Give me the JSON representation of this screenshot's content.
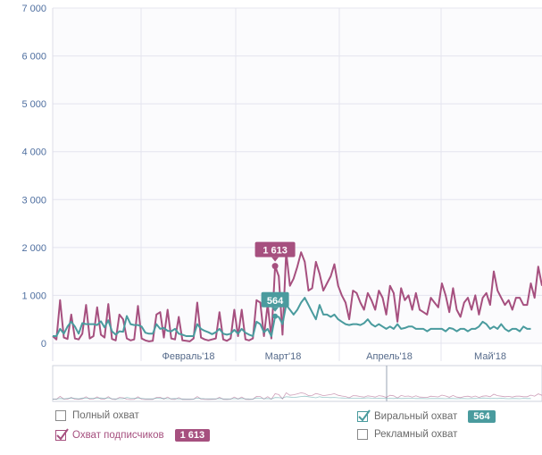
{
  "chart_data": {
    "type": "line",
    "y_ticks": [
      "7 000",
      "6 000",
      "5 000",
      "4 000",
      "3 000",
      "2 000",
      "1 000",
      "0"
    ],
    "ylim": [
      0,
      7000
    ],
    "x_tick_labels": [
      "Февраль'18",
      "Март'18",
      "Апрель'18",
      "Май'18"
    ],
    "grid": true,
    "series": [
      {
        "name": "Охват подписчиков",
        "color": "#a6507f",
        "values": [
          150,
          80,
          900,
          120,
          90,
          600,
          100,
          80,
          200,
          800,
          100,
          150,
          750,
          180,
          120,
          820,
          90,
          60,
          600,
          500,
          100,
          60,
          80,
          780,
          100,
          60,
          40,
          50,
          600,
          650,
          120,
          700,
          100,
          80,
          550,
          60,
          50,
          40,
          100,
          850,
          120,
          80,
          60,
          80,
          100,
          650,
          80,
          50,
          100,
          700,
          150,
          700,
          80,
          60,
          100,
          900,
          850,
          150,
          820,
          100,
          1613,
          1400,
          180,
          1900,
          1200,
          1350,
          1600,
          1900,
          1700,
          1100,
          1150,
          1700,
          1450,
          1100,
          1250,
          1400,
          1650,
          1200,
          1000,
          850,
          500,
          1100,
          1050,
          850,
          700,
          1050,
          900,
          700,
          1100,
          950,
          600,
          1200,
          1050,
          450,
          1150,
          900,
          1000,
          700,
          1050,
          700,
          650,
          600,
          950,
          850,
          750,
          1250,
          1000,
          650,
          1150,
          700,
          550,
          850,
          950,
          700,
          1000,
          600,
          950,
          1050,
          800,
          1500,
          1100,
          950,
          800,
          900,
          700,
          950,
          950,
          800,
          800,
          1250,
          950,
          1600,
          1200
        ]
      },
      {
        "name": "Виральный охват",
        "color": "#4a9b9e",
        "values": [
          150,
          150,
          300,
          200,
          350,
          450,
          350,
          200,
          420,
          400,
          400,
          400,
          380,
          460,
          330,
          480,
          250,
          180,
          250,
          240,
          570,
          400,
          380,
          380,
          350,
          220,
          200,
          200,
          400,
          300,
          320,
          260,
          250,
          300,
          200,
          180,
          150,
          150,
          150,
          400,
          300,
          260,
          230,
          190,
          230,
          300,
          200,
          180,
          200,
          280,
          200,
          300,
          220,
          180,
          150,
          450,
          400,
          230,
          300,
          150,
          564,
          550,
          400,
          800,
          700,
          600,
          700,
          850,
          950,
          800,
          650,
          500,
          800,
          600,
          600,
          550,
          600,
          500,
          450,
          400,
          380,
          400,
          400,
          380,
          420,
          500,
          400,
          350,
          400,
          350,
          300,
          350,
          300,
          400,
          300,
          320,
          350,
          350,
          300,
          300,
          300,
          250,
          300,
          300,
          300,
          300,
          250,
          320,
          300,
          250,
          300,
          300,
          250,
          300,
          300,
          350,
          450,
          400,
          300,
          350,
          300,
          400,
          300,
          250,
          300,
          300,
          250,
          350,
          300,
          300
        ]
      }
    ],
    "tooltips": [
      {
        "label": "1 613",
        "series": "Охват подписчиков",
        "color": "#a6507f"
      },
      {
        "label": "564",
        "series": "Виральный охват",
        "color": "#4a9b9e"
      }
    ]
  },
  "legend": {
    "items": [
      {
        "label": "Полный охват",
        "checked": false,
        "badge": ""
      },
      {
        "label": "Охват подписчиков",
        "checked": true,
        "badge": "1 613",
        "color": "#a6507f"
      },
      {
        "label": "Виральный охват",
        "checked": true,
        "badge": "564",
        "color": "#4a9b9e"
      },
      {
        "label": "Рекламный охват",
        "checked": false,
        "badge": ""
      }
    ]
  }
}
